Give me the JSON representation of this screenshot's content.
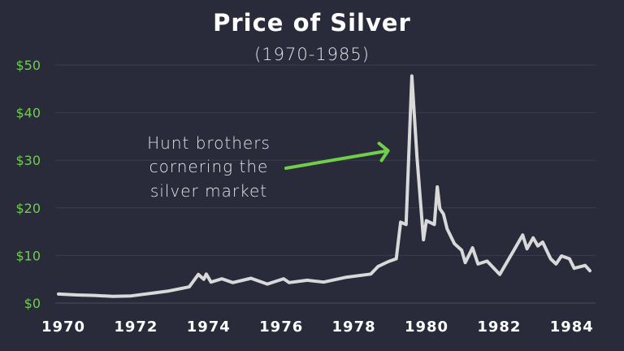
{
  "chart_data": {
    "type": "line",
    "title": "Price of Silver",
    "subtitle": "(1970-1985)",
    "xlabel": "",
    "ylabel": "",
    "xlim": [
      1970,
      1984.7
    ],
    "ylim": [
      0,
      50
    ],
    "grid": true,
    "x_ticks": [
      1970,
      1972,
      1974,
      1976,
      1978,
      1980,
      1982,
      1984
    ],
    "x_tick_labels": [
      "1970",
      "1972",
      "1974",
      "1976",
      "1978",
      "1980",
      "1982",
      "1984"
    ],
    "y_ticks": [
      0,
      10,
      20,
      30,
      40,
      50
    ],
    "y_tick_labels": [
      "$0",
      "$10",
      "$20",
      "$30",
      "$40",
      "$50"
    ],
    "colors": {
      "background": "#292b3a",
      "line": "#d9d9d9",
      "accent": "#6fcf4a",
      "grid": "#3a3d4e"
    },
    "annotation": {
      "lines": [
        "Hunt brothers",
        "cornering the",
        "silver market"
      ],
      "points_to": {
        "x": 1979.7,
        "y": 32
      }
    },
    "series": [
      {
        "x": [
          1970.0,
          1970.5,
          1971.0,
          1971.5,
          1972.0,
          1972.7,
          1973.0,
          1973.6,
          1973.85,
          1974.0,
          1974.07,
          1974.2,
          1974.5,
          1974.8,
          1975.3,
          1975.75,
          1976.2,
          1976.35,
          1976.85,
          1977.3,
          1977.9,
          1978.6,
          1978.8,
          1979.08,
          1979.3,
          1979.42,
          1979.57,
          1979.73,
          1979.87,
          1980.05,
          1980.13,
          1980.35,
          1980.43,
          1980.5,
          1980.6,
          1980.7,
          1980.9,
          1981.1,
          1981.2,
          1981.4,
          1981.55,
          1981.8,
          1982.15,
          1982.5,
          1982.78,
          1982.9,
          1983.07,
          1983.2,
          1983.33,
          1983.55,
          1983.7,
          1983.85,
          1984.07,
          1984.2,
          1984.5,
          1984.63
        ],
        "y": [
          1.9,
          1.7,
          1.6,
          1.4,
          1.5,
          2.2,
          2.5,
          3.4,
          6.0,
          5.0,
          6.1,
          4.4,
          5.1,
          4.3,
          5.2,
          4.0,
          5.1,
          4.3,
          4.8,
          4.4,
          5.4,
          6.1,
          7.7,
          8.7,
          9.3,
          17.0,
          16.5,
          47.7,
          30.7,
          13.3,
          17.3,
          16.5,
          24.4,
          19.8,
          18.7,
          15.6,
          12.5,
          11.1,
          8.5,
          11.6,
          8.2,
          8.8,
          6.0,
          10.6,
          14.3,
          11.4,
          13.7,
          12.0,
          12.8,
          9.3,
          8.2,
          9.9,
          9.3,
          7.3,
          7.9,
          6.8
        ]
      }
    ]
  }
}
